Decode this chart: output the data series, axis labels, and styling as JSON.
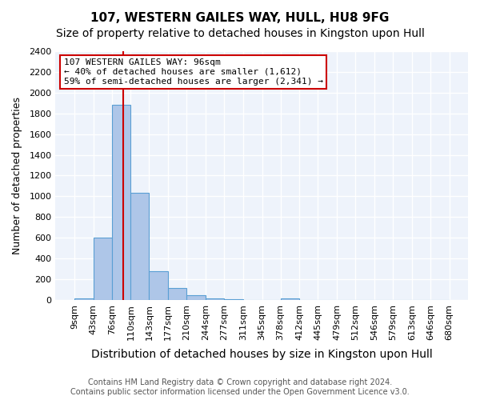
{
  "title": "107, WESTERN GAILES WAY, HULL, HU8 9FG",
  "subtitle": "Size of property relative to detached houses in Kingston upon Hull",
  "xlabel": "Distribution of detached houses by size in Kingston upon Hull",
  "ylabel": "Number of detached properties",
  "footer_line1": "Contains HM Land Registry data © Crown copyright and database right 2024.",
  "footer_line2": "Contains public sector information licensed under the Open Government Licence v3.0.",
  "bins": [
    9,
    43,
    76,
    110,
    143,
    177,
    210,
    244,
    277,
    311,
    345,
    378,
    412,
    445,
    479,
    512,
    546,
    579,
    613,
    646,
    680
  ],
  "bin_labels": [
    "9sqm",
    "43sqm",
    "76sqm",
    "110sqm",
    "143sqm",
    "177sqm",
    "210sqm",
    "244sqm",
    "277sqm",
    "311sqm",
    "345sqm",
    "378sqm",
    "412sqm",
    "445sqm",
    "479sqm",
    "512sqm",
    "546sqm",
    "579sqm",
    "613sqm",
    "646sqm",
    "680sqm"
  ],
  "bar_heights": [
    15,
    600,
    1880,
    1030,
    280,
    115,
    45,
    18,
    5,
    3,
    2,
    18,
    2,
    1,
    0,
    0,
    0,
    0,
    0,
    0
  ],
  "bar_color": "#aec6e8",
  "bar_edgecolor": "#5a9fd4",
  "bar_linewidth": 0.8,
  "background_color": "#eef3fb",
  "grid_color": "#ffffff",
  "ylim": [
    0,
    2400
  ],
  "yticks": [
    0,
    200,
    400,
    600,
    800,
    1000,
    1200,
    1400,
    1600,
    1800,
    2000,
    2200,
    2400
  ],
  "property_size_sqm": 96,
  "red_line_color": "#cc0000",
  "annotation_text_line1": "107 WESTERN GAILES WAY: 96sqm",
  "annotation_text_line2": "← 40% of detached houses are smaller (1,612)",
  "annotation_text_line3": "59% of semi-detached houses are larger (2,341) →",
  "annotation_box_facecolor": "#ffffff",
  "annotation_box_edgecolor": "#cc0000",
  "title_fontsize": 11,
  "subtitle_fontsize": 10,
  "xlabel_fontsize": 10,
  "ylabel_fontsize": 9,
  "tick_fontsize": 8,
  "annotation_fontsize": 8,
  "footer_fontsize": 7
}
